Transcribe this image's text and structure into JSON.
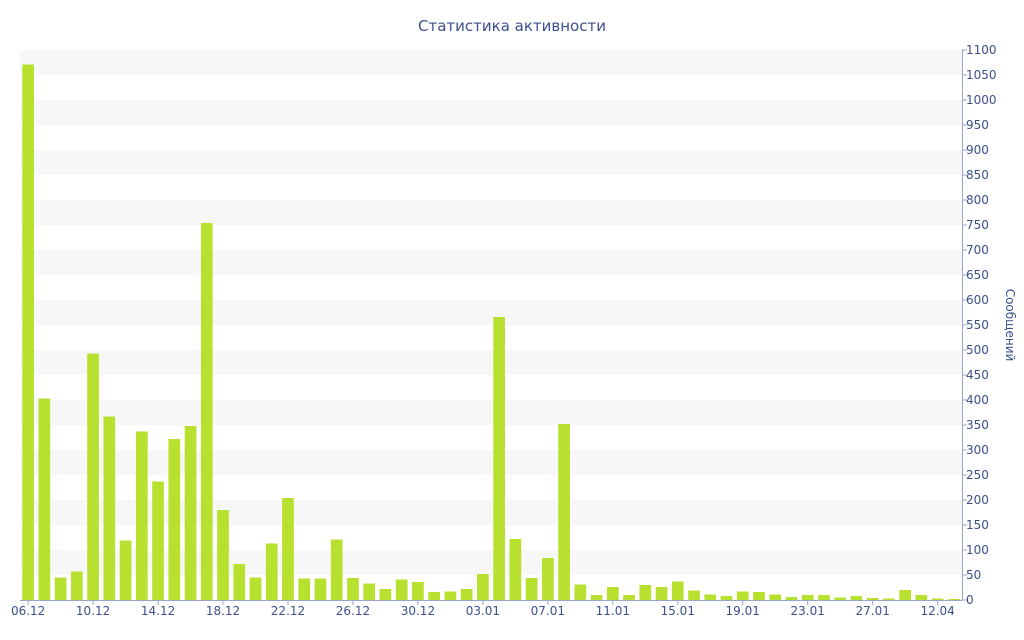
{
  "chart_data": {
    "type": "bar",
    "title": "Статистика активности",
    "xlabel": "",
    "ylabel": "Сообщений",
    "ylim": [
      0,
      1100
    ],
    "y_ticks": [
      0,
      50,
      100,
      150,
      200,
      250,
      300,
      350,
      400,
      450,
      500,
      550,
      600,
      650,
      700,
      750,
      800,
      850,
      900,
      950,
      1000,
      1050,
      1100
    ],
    "y_axis_position": "right",
    "grid": "alternating horizontal bands",
    "bar_color": "#b8e02e",
    "band_color": "#f7f7f7",
    "text_color": "#3c4f8c",
    "x_tick_labels": [
      "06.12",
      "10.12",
      "14.12",
      "18.12",
      "22.12",
      "26.12",
      "30.12",
      "03.01",
      "07.01",
      "11.01",
      "15.01",
      "19.01",
      "23.01",
      "27.01",
      "12.04"
    ],
    "categories": [
      "06.12",
      "07.12",
      "08.12",
      "09.12",
      "10.12",
      "11.12",
      "12.12",
      "13.12",
      "14.12",
      "15.12",
      "16.12",
      "17.12",
      "18.12",
      "19.12",
      "20.12",
      "21.12",
      "22.12",
      "23.12",
      "24.12",
      "25.12",
      "26.12",
      "27.12",
      "28.12",
      "29.12",
      "30.12",
      "31.12",
      "01.01",
      "02.01",
      "03.01",
      "04.01",
      "05.01",
      "06.01",
      "07.01",
      "08.01",
      "09.01",
      "10.01",
      "11.01",
      "12.01",
      "13.01",
      "14.01",
      "15.01",
      "16.01",
      "17.01",
      "18.01",
      "19.01",
      "20.01",
      "21.01",
      "22.01",
      "23.01",
      "24.01",
      "25.01",
      "26.01",
      "27.01",
      "28.01",
      "29.01",
      "30.01",
      "12.04",
      "13.04"
    ],
    "values": [
      1071,
      403,
      45,
      57,
      493,
      367,
      119,
      337,
      237,
      322,
      348,
      754,
      180,
      72,
      45,
      113,
      204,
      43,
      43,
      121,
      44,
      33,
      22,
      41,
      36,
      16,
      17,
      22,
      52,
      566,
      122,
      44,
      84,
      352,
      31,
      10,
      26,
      10,
      30,
      26,
      37,
      19,
      11,
      8,
      17,
      16,
      11,
      6,
      10,
      10,
      5,
      8,
      4,
      3,
      20,
      10,
      3,
      2
    ]
  }
}
